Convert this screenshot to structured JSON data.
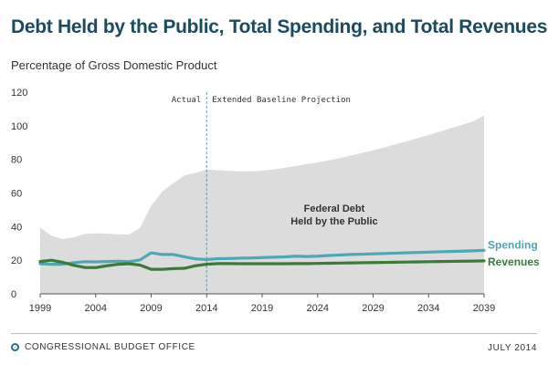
{
  "header": {
    "title": "Debt Held by the Public, Total Spending, and Total Revenues",
    "subtitle": "Percentage of Gross Domestic Product"
  },
  "footer": {
    "agency": "CONGRESSIONAL BUDGET OFFICE",
    "date": "JULY 2014"
  },
  "colors": {
    "debt_area": "#dcdcdc",
    "spending": "#4fa6b4",
    "revenues": "#3c7a3a",
    "divider": "#5aa0b0"
  },
  "chart_data": {
    "type": "area",
    "title": "Debt Held by the Public, Total Spending, and Total Revenues",
    "ylabel": "Percentage of Gross Domestic Product",
    "xlabel": "",
    "xlim": [
      1999,
      2039
    ],
    "ylim": [
      0,
      120
    ],
    "x_ticks": [
      "1999",
      "2004",
      "2009",
      "2014",
      "2019",
      "2024",
      "2029",
      "2034",
      "2039"
    ],
    "y_ticks": [
      "0",
      "20",
      "40",
      "60",
      "80",
      "100",
      "120"
    ],
    "grid": false,
    "divider": {
      "x": 2014,
      "left_label": "Actual",
      "right_label": "Extended Baseline Projection"
    },
    "annotation": {
      "lines": [
        "Federal Debt",
        "Held by the Public"
      ],
      "x": 2025.5,
      "y": 45
    },
    "x": [
      1999,
      2000,
      2001,
      2002,
      2003,
      2004,
      2005,
      2006,
      2007,
      2008,
      2009,
      2010,
      2011,
      2012,
      2013,
      2014,
      2015,
      2016,
      2017,
      2018,
      2019,
      2020,
      2021,
      2022,
      2023,
      2024,
      2025,
      2026,
      2027,
      2028,
      2029,
      2030,
      2031,
      2032,
      2033,
      2034,
      2035,
      2036,
      2037,
      2038,
      2039
    ],
    "series": [
      {
        "name": "Federal Debt Held by the Public",
        "kind": "area",
        "values": [
          39.4,
          34.7,
          32.5,
          33.6,
          35.6,
          36.0,
          35.8,
          35.4,
          35.2,
          39.3,
          52.3,
          60.9,
          65.9,
          70.4,
          72.0,
          74.0,
          73.6,
          73.2,
          72.9,
          72.9,
          73.3,
          74.0,
          74.9,
          76.0,
          77.2,
          78.2,
          79.4,
          80.8,
          82.3,
          83.8,
          85.4,
          87.1,
          88.9,
          90.7,
          92.6,
          94.5,
          96.5,
          98.5,
          100.5,
          102.6,
          106.0
        ]
      },
      {
        "name": "Spending",
        "kind": "line",
        "label": "Spending",
        "values": [
          17.9,
          17.6,
          17.6,
          18.5,
          19.1,
          19.0,
          19.2,
          19.4,
          19.1,
          20.2,
          24.4,
          23.4,
          23.4,
          22.0,
          20.8,
          20.4,
          20.9,
          21.0,
          21.2,
          21.3,
          21.6,
          21.8,
          22.0,
          22.4,
          22.2,
          22.4,
          22.8,
          23.1,
          23.4,
          23.6,
          23.8,
          24.0,
          24.2,
          24.4,
          24.6,
          24.8,
          25.0,
          25.2,
          25.4,
          25.6,
          25.9
        ]
      },
      {
        "name": "Revenues",
        "kind": "line",
        "label": "Revenues",
        "values": [
          19.2,
          20.0,
          18.8,
          17.0,
          15.7,
          15.6,
          16.7,
          17.6,
          17.9,
          17.1,
          14.6,
          14.6,
          15.0,
          15.2,
          16.7,
          17.6,
          18.0,
          18.0,
          17.9,
          17.9,
          17.9,
          17.9,
          17.9,
          18.0,
          18.0,
          18.1,
          18.2,
          18.3,
          18.4,
          18.5,
          18.6,
          18.7,
          18.8,
          18.9,
          19.0,
          19.1,
          19.2,
          19.3,
          19.4,
          19.5,
          19.6
        ]
      }
    ]
  }
}
